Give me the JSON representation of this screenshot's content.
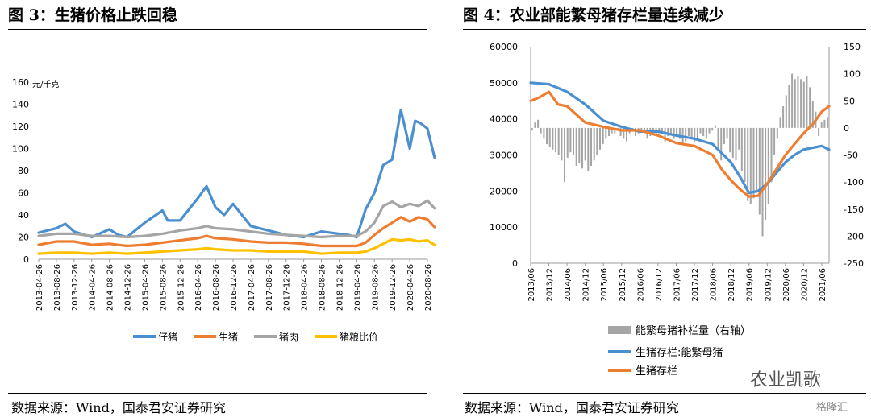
{
  "left": {
    "title": "图 3：生猪价格止跌回稳",
    "source": "数据来源：Wind，国泰君安证券研究",
    "chart_data": {
      "type": "line",
      "unit_label": "元/千克",
      "ylim": [
        0,
        160
      ],
      "yticks": [
        0,
        20,
        40,
        60,
        80,
        100,
        120,
        140,
        160
      ],
      "x_tick_labels": [
        "2013-04-26",
        "2013-08-26",
        "2013-12-26",
        "2014-04-26",
        "2014-08-26",
        "2014-12-26",
        "2015-04-26",
        "2015-08-26",
        "2015-12-26",
        "2016-04-26",
        "2016-08-26",
        "2016-12-26",
        "2017-04-26",
        "2017-08-26",
        "2017-12-26",
        "2018-04-26",
        "2018-08-26",
        "2018-12-26",
        "2019-04-26",
        "2019-08-26",
        "2019-12-26",
        "2020-04-26",
        "2020-08-26"
      ],
      "legend_position": "bottom",
      "series": [
        {
          "name": "仔猪",
          "color": "#4a8fd0",
          "x": [
            0,
            1,
            1.5,
            2,
            3,
            4,
            4.5,
            5,
            6,
            7,
            7.3,
            8,
            9,
            9.5,
            10,
            10.5,
            11,
            12,
            13,
            14,
            15,
            16,
            17,
            17.5,
            18,
            18.5,
            19,
            19.5,
            20,
            20.5,
            21,
            21.3,
            21.6,
            22,
            22.4
          ],
          "values": [
            24,
            28,
            32,
            25,
            20,
            27,
            22,
            20,
            33,
            44,
            35,
            35,
            55,
            66,
            47,
            40,
            50,
            30,
            26,
            22,
            20,
            25,
            23,
            22,
            20,
            45,
            60,
            85,
            90,
            135,
            100,
            125,
            123,
            118,
            92
          ]
        },
        {
          "name": "生猪",
          "color": "#ed7d31",
          "x": [
            0,
            1,
            2,
            3,
            4,
            5,
            6,
            7,
            8,
            9,
            9.5,
            10,
            11,
            12,
            13,
            14,
            15,
            16,
            17,
            18,
            18.5,
            19,
            19.5,
            20,
            20.5,
            21,
            21.5,
            22,
            22.4
          ],
          "values": [
            13,
            16,
            16,
            13,
            14,
            12,
            13,
            15,
            17,
            19,
            21,
            19,
            18,
            16,
            15,
            15,
            14,
            12,
            12,
            12,
            15,
            22,
            28,
            33,
            38,
            34,
            38,
            36,
            29
          ]
        },
        {
          "name": "猪肉",
          "color": "#a5a5a5",
          "x": [
            0,
            1,
            2,
            3,
            4,
            5,
            6,
            7,
            8,
            9,
            9.5,
            10,
            11,
            12,
            13,
            14,
            15,
            16,
            17,
            18,
            18.5,
            19,
            19.5,
            20,
            20.5,
            21,
            21.5,
            22,
            22.4
          ],
          "values": [
            21,
            23,
            23,
            21,
            21,
            20,
            21,
            23,
            26,
            28,
            30,
            28,
            27,
            25,
            23,
            22,
            21,
            20,
            21,
            21,
            25,
            33,
            48,
            52,
            47,
            50,
            48,
            53,
            46
          ]
        },
        {
          "name": "猪粮比价",
          "color": "#ffc000",
          "x": [
            0,
            1,
            2,
            3,
            4,
            5,
            6,
            7,
            8,
            9,
            9.5,
            10,
            11,
            12,
            13,
            14,
            15,
            16,
            17,
            18,
            18.5,
            19,
            19.5,
            20,
            20.5,
            21,
            21.5,
            22,
            22.4
          ],
          "values": [
            5,
            6,
            6,
            5,
            6,
            5,
            6,
            7,
            8,
            9,
            10,
            9,
            8,
            8,
            7,
            7,
            7,
            5,
            6,
            6,
            7,
            10,
            14,
            18,
            17,
            18,
            16,
            17,
            13
          ]
        }
      ]
    }
  },
  "right": {
    "title": "图 4：农业部能繁母猪存栏量连续减少",
    "source": "数据来源：Wind，国泰君安证券研究",
    "chart_data": {
      "type": "bar+line",
      "left_ylim": [
        0,
        60000
      ],
      "left_yticks": [
        0,
        10000,
        20000,
        30000,
        40000,
        50000,
        60000
      ],
      "right_ylim": [
        -250,
        150
      ],
      "right_yticks": [
        -250,
        -200,
        -150,
        -100,
        -50,
        0,
        50,
        100,
        150
      ],
      "x_tick_labels": [
        "2013/06",
        "2013/12",
        "2014/06",
        "2014/12",
        "2015/06",
        "2015/12",
        "2016/06",
        "2016/12",
        "2017/06",
        "2017/12",
        "2018/06",
        "2018/12",
        "2019/06",
        "2019/12",
        "2020/06",
        "2020/12",
        "2021/06"
      ],
      "legend_position": "bottom",
      "bars": {
        "name": "能繁母猪补栏量（右轴）",
        "color": "#a5a5a5",
        "values": [
          -5,
          10,
          15,
          -10,
          -20,
          -30,
          -35,
          -40,
          -45,
          -50,
          -60,
          -100,
          -55,
          -45,
          -50,
          -70,
          -65,
          -75,
          -60,
          -80,
          -70,
          -60,
          -50,
          -40,
          -30,
          -20,
          -15,
          -10,
          -10,
          -5,
          -15,
          -20,
          -25,
          -10,
          -5,
          -15,
          -10,
          -5,
          -10,
          -20,
          -15,
          -5,
          -15,
          -10,
          -10,
          -25,
          -15,
          -10,
          -20,
          -15,
          -20,
          -30,
          -25,
          -15,
          -20,
          -25,
          -20,
          -10,
          -15,
          -20,
          -10,
          -5,
          5,
          -40,
          -60,
          -30,
          -20,
          -45,
          -55,
          -60,
          -40,
          -80,
          -100,
          -135,
          -140,
          -130,
          -120,
          -160,
          -200,
          -170,
          -140,
          -100,
          -50,
          -20,
          20,
          40,
          60,
          80,
          100,
          90,
          95,
          90,
          85,
          95,
          75,
          50,
          30,
          -15,
          10,
          15,
          20
        ]
      },
      "series": [
        {
          "name": "生猪存栏:能繁母猪",
          "axis": "left",
          "color": "#4a8fd0",
          "x": [
            0,
            1,
            2,
            3,
            4,
            5,
            6,
            7,
            8,
            9,
            10,
            10.5,
            11,
            11.5,
            12,
            12.5,
            13,
            13.5,
            14,
            14.5,
            15,
            15.5,
            16,
            16.4
          ],
          "values": [
            50000,
            49600,
            47500,
            44000,
            39500,
            37800,
            36500,
            36500,
            35400,
            34500,
            33000,
            30500,
            28000,
            24000,
            19500,
            20000,
            22000,
            25000,
            28000,
            30000,
            31500,
            32000,
            32500,
            31500
          ]
        },
        {
          "name": "生猪存栏",
          "axis": "left",
          "color": "#ed7d31",
          "x": [
            0,
            0.5,
            1,
            1.5,
            2,
            3,
            4,
            5,
            6,
            7,
            8,
            9,
            10,
            10.5,
            11,
            11.5,
            12,
            12.5,
            13,
            13.5,
            14,
            14.5,
            15,
            15.5,
            16,
            16.4
          ],
          "values": [
            45000,
            46000,
            47500,
            44000,
            43500,
            39000,
            37800,
            36800,
            36800,
            35400,
            33300,
            32500,
            30000,
            26000,
            23000,
            20500,
            18500,
            18700,
            22000,
            26000,
            30000,
            33000,
            36000,
            38500,
            42000,
            43500
          ]
        }
      ]
    }
  },
  "watermark": "农业凯歌",
  "brand": "格隆汇"
}
